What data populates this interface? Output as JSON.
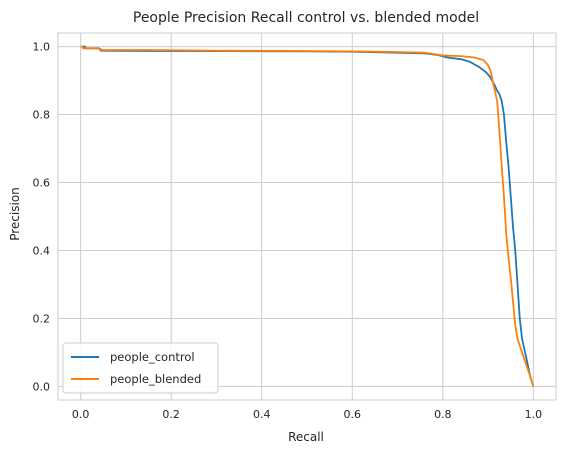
{
  "chart_data": {
    "type": "line",
    "title": "People Precision Recall control vs. blended model",
    "xlabel": "Recall",
    "ylabel": "Precision",
    "xlim": [
      -0.05,
      1.05
    ],
    "ylim": [
      -0.04,
      1.04
    ],
    "xticks": [
      "0.0",
      "0.2",
      "0.4",
      "0.6",
      "0.8",
      "1.0"
    ],
    "yticks": [
      "0.0",
      "0.2",
      "0.4",
      "0.6",
      "0.8",
      "1.0"
    ],
    "grid": true,
    "legend": "lower-left",
    "series": [
      {
        "name": "people_control",
        "color": "#1f77b4",
        "points": [
          [
            0.0,
            1.0
          ],
          [
            0.01,
            1.0
          ],
          [
            0.01,
            0.995
          ],
          [
            0.04,
            0.995
          ],
          [
            0.045,
            0.988
          ],
          [
            0.2,
            0.987
          ],
          [
            0.5,
            0.986
          ],
          [
            0.6,
            0.985
          ],
          [
            0.7,
            0.982
          ],
          [
            0.76,
            0.98
          ],
          [
            0.79,
            0.975
          ],
          [
            0.81,
            0.968
          ],
          [
            0.84,
            0.963
          ],
          [
            0.86,
            0.955
          ],
          [
            0.88,
            0.94
          ],
          [
            0.895,
            0.925
          ],
          [
            0.905,
            0.91
          ],
          [
            0.915,
            0.885
          ],
          [
            0.92,
            0.87
          ],
          [
            0.925,
            0.86
          ],
          [
            0.93,
            0.84
          ],
          [
            0.935,
            0.8
          ],
          [
            0.94,
            0.72
          ],
          [
            0.945,
            0.65
          ],
          [
            0.95,
            0.56
          ],
          [
            0.955,
            0.47
          ],
          [
            0.96,
            0.4
          ],
          [
            0.965,
            0.3
          ],
          [
            0.97,
            0.2
          ],
          [
            0.975,
            0.14
          ],
          [
            0.985,
            0.08
          ],
          [
            0.993,
            0.03
          ],
          [
            1.0,
            0.0
          ]
        ]
      },
      {
        "name": "people_blended",
        "color": "#ff7f0e",
        "points": [
          [
            0.0,
            1.0
          ],
          [
            0.005,
            1.0
          ],
          [
            0.005,
            0.995
          ],
          [
            0.03,
            0.995
          ],
          [
            0.045,
            0.993
          ],
          [
            0.045,
            0.99
          ],
          [
            0.15,
            0.99
          ],
          [
            0.3,
            0.988
          ],
          [
            0.5,
            0.987
          ],
          [
            0.6,
            0.986
          ],
          [
            0.7,
            0.984
          ],
          [
            0.76,
            0.982
          ],
          [
            0.8,
            0.974
          ],
          [
            0.84,
            0.972
          ],
          [
            0.87,
            0.968
          ],
          [
            0.89,
            0.96
          ],
          [
            0.9,
            0.945
          ],
          [
            0.905,
            0.93
          ],
          [
            0.91,
            0.9
          ],
          [
            0.915,
            0.87
          ],
          [
            0.92,
            0.84
          ],
          [
            0.925,
            0.75
          ],
          [
            0.93,
            0.65
          ],
          [
            0.935,
            0.56
          ],
          [
            0.94,
            0.45
          ],
          [
            0.945,
            0.38
          ],
          [
            0.95,
            0.32
          ],
          [
            0.955,
            0.25
          ],
          [
            0.96,
            0.18
          ],
          [
            0.965,
            0.14
          ],
          [
            0.975,
            0.1
          ],
          [
            0.985,
            0.06
          ],
          [
            0.993,
            0.03
          ],
          [
            1.0,
            0.0
          ]
        ]
      }
    ]
  }
}
